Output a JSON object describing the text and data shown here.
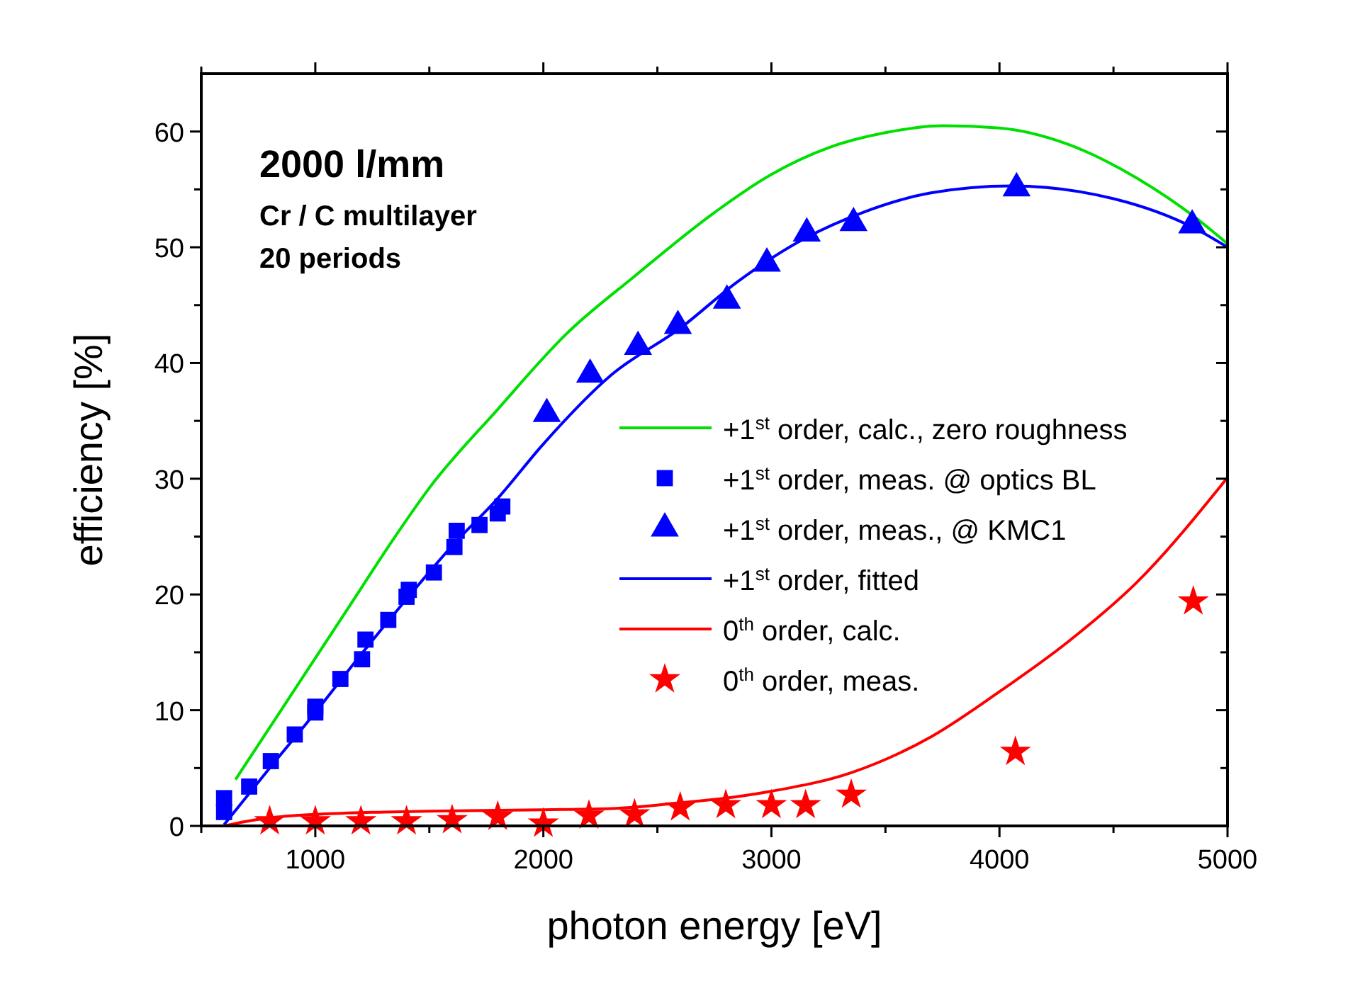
{
  "chart_data": {
    "type": "line",
    "xlabel": "photon energy [eV]",
    "ylabel": "efficiency [%]",
    "xlim": [
      500,
      5000
    ],
    "ylim": [
      0,
      65
    ],
    "xticks": [
      {
        "value": 500,
        "label": null
      },
      1000,
      {
        "value": 1500,
        "label": null
      },
      2000,
      {
        "value": 2500,
        "label": null
      },
      3000,
      {
        "value": 3500,
        "label": null
      },
      4000,
      {
        "value": 4500,
        "label": null
      },
      5000
    ],
    "yticks": [
      0,
      {
        "value": 5,
        "label": null
      },
      10,
      {
        "value": 15,
        "label": null
      },
      20,
      {
        "value": 25,
        "label": null
      },
      30,
      {
        "value": 35,
        "label": null
      },
      40,
      {
        "value": 45,
        "label": null
      },
      50,
      {
        "value": 55,
        "label": null
      },
      60
    ],
    "grid": false,
    "legend": "right",
    "annotations": [
      "2000 l/mm",
      "Cr / C multilayer",
      "20 periods"
    ],
    "series": [
      {
        "name": "+1$^{st}$ order, calc., zero roughness",
        "color": "#00e000",
        "marker": "none",
        "x": [
          650,
          800,
          1000,
          1150,
          1350,
          1500,
          1800,
          2100,
          2400,
          2750,
          3000,
          3250,
          3500,
          3750,
          4000,
          4300,
          4600,
          4850,
          5000
        ],
        "values": [
          4.0,
          8.5,
          14.5,
          19,
          25,
          29.2,
          36,
          42.5,
          47.5,
          53,
          56.3,
          58.6,
          59.9,
          60.5,
          60.3,
          58.9,
          56,
          52.7,
          50.3
        ]
      },
      {
        "name": "+1$^{st}$ order, meas. @ optics BL",
        "type": "scatter",
        "color": "#0000ff",
        "marker": "square",
        "x": [
          600,
          600,
          710,
          805,
          910,
          1000,
          1000,
          1110,
          1205,
          1220,
          1320,
          1400,
          1410,
          1520,
          1610,
          1620,
          1720,
          1800,
          1820
        ],
        "values": [
          1.2,
          2.4,
          3.4,
          5.6,
          7.9,
          9.8,
          10.3,
          12.7,
          14.4,
          16.1,
          17.8,
          19.8,
          20.4,
          21.9,
          24.1,
          25.5,
          26.0,
          27.0,
          27.6
        ]
      },
      {
        "name": "+1$^{st}$ order, meas., @ KMC1",
        "type": "scatter",
        "color": "#0000ff",
        "marker": "triangle",
        "x": [
          2015,
          2205,
          2415,
          2590,
          2805,
          2980,
          3155,
          3360,
          4075,
          4845
        ],
        "values": [
          35.6,
          39.0,
          41.4,
          43.2,
          45.4,
          48.6,
          51.2,
          52.1,
          55.1,
          51.9
        ]
      },
      {
        "name": "+1$^{st}$ order, fitted",
        "color": "#0000ff",
        "marker": "none",
        "x": [
          600,
          800,
          1000,
          1200,
          1400,
          1600,
          1800,
          2000,
          2300,
          2600,
          2850,
          3150,
          3400,
          3700,
          4050,
          4500,
          4850,
          5000
        ],
        "values": [
          0.1,
          5.0,
          9.8,
          14.8,
          19.6,
          24.2,
          28.3,
          33.0,
          39.0,
          43.0,
          47.0,
          50.8,
          53.0,
          54.7,
          55.3,
          54.2,
          51.7,
          50.0
        ]
      },
      {
        "name": "0$^{th}$ order, calc.",
        "color": "#ff0000",
        "marker": "none",
        "x": [
          600,
          700,
          800,
          1000,
          1300,
          1600,
          2000,
          2300,
          2600,
          2800,
          3000,
          3350,
          3700,
          4000,
          4300,
          4600,
          5000
        ],
        "values": [
          0,
          0.4,
          0.7,
          1.0,
          1.2,
          1.3,
          1.4,
          1.5,
          2.0,
          2.4,
          3.0,
          4.6,
          7.7,
          11.6,
          15.9,
          21.0,
          30.1
        ]
      },
      {
        "name": "0$^{th}$ order, meas.",
        "type": "scatter",
        "color": "#ff0000",
        "marker": "star",
        "x": [
          800,
          1000,
          1200,
          1400,
          1600,
          1800,
          2000,
          2200,
          2400,
          2600,
          2800,
          3000,
          3150,
          3350,
          4070,
          4850
        ],
        "values": [
          0.4,
          0.4,
          0.4,
          0.4,
          0.5,
          0.8,
          0.2,
          0.9,
          1.0,
          1.6,
          1.8,
          1.8,
          1.8,
          2.7,
          6.4,
          19.4
        ]
      }
    ]
  }
}
